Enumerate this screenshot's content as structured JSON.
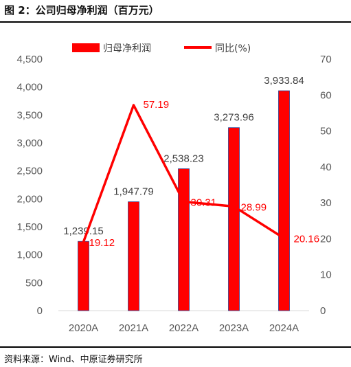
{
  "figure_title": "图 2：公司归母净利润（百万元）",
  "source": "资料来源：Wind、中原证券研究所",
  "colors": {
    "bar": "#ff0000",
    "bar_edge": "#2f3e8f",
    "line": "#ff0000",
    "pct_label": "#ff0000"
  },
  "chart_data": {
    "type": "bar",
    "categories": [
      "2020A",
      "2021A",
      "2022A",
      "2023A",
      "2024A"
    ],
    "series": [
      {
        "name": "归母净利润",
        "type": "bar",
        "axis": "left",
        "values": [
          1239.15,
          1947.79,
          2538.23,
          3273.96,
          3933.84
        ],
        "labels": [
          "1,239.15",
          "1,947.79",
          "2,538.23",
          "3,273.96",
          "3,933.84"
        ]
      },
      {
        "name": "同比(%)",
        "type": "line",
        "axis": "right",
        "values": [
          19.12,
          57.19,
          30.31,
          28.99,
          20.16
        ],
        "labels": [
          "19.12",
          "57.19",
          "30.31",
          "28.99",
          "20.16"
        ]
      }
    ],
    "ylim_left": [
      0,
      4500
    ],
    "yticks_left": [
      "0",
      "500",
      "1,000",
      "1,500",
      "2,000",
      "2,500",
      "3,000",
      "3,500",
      "4,000",
      "4,500"
    ],
    "ylim_right": [
      0,
      70
    ],
    "yticks_right": [
      "0",
      "10",
      "20",
      "30",
      "40",
      "50",
      "60",
      "70"
    ],
    "legend_position": "top",
    "grid": false
  }
}
